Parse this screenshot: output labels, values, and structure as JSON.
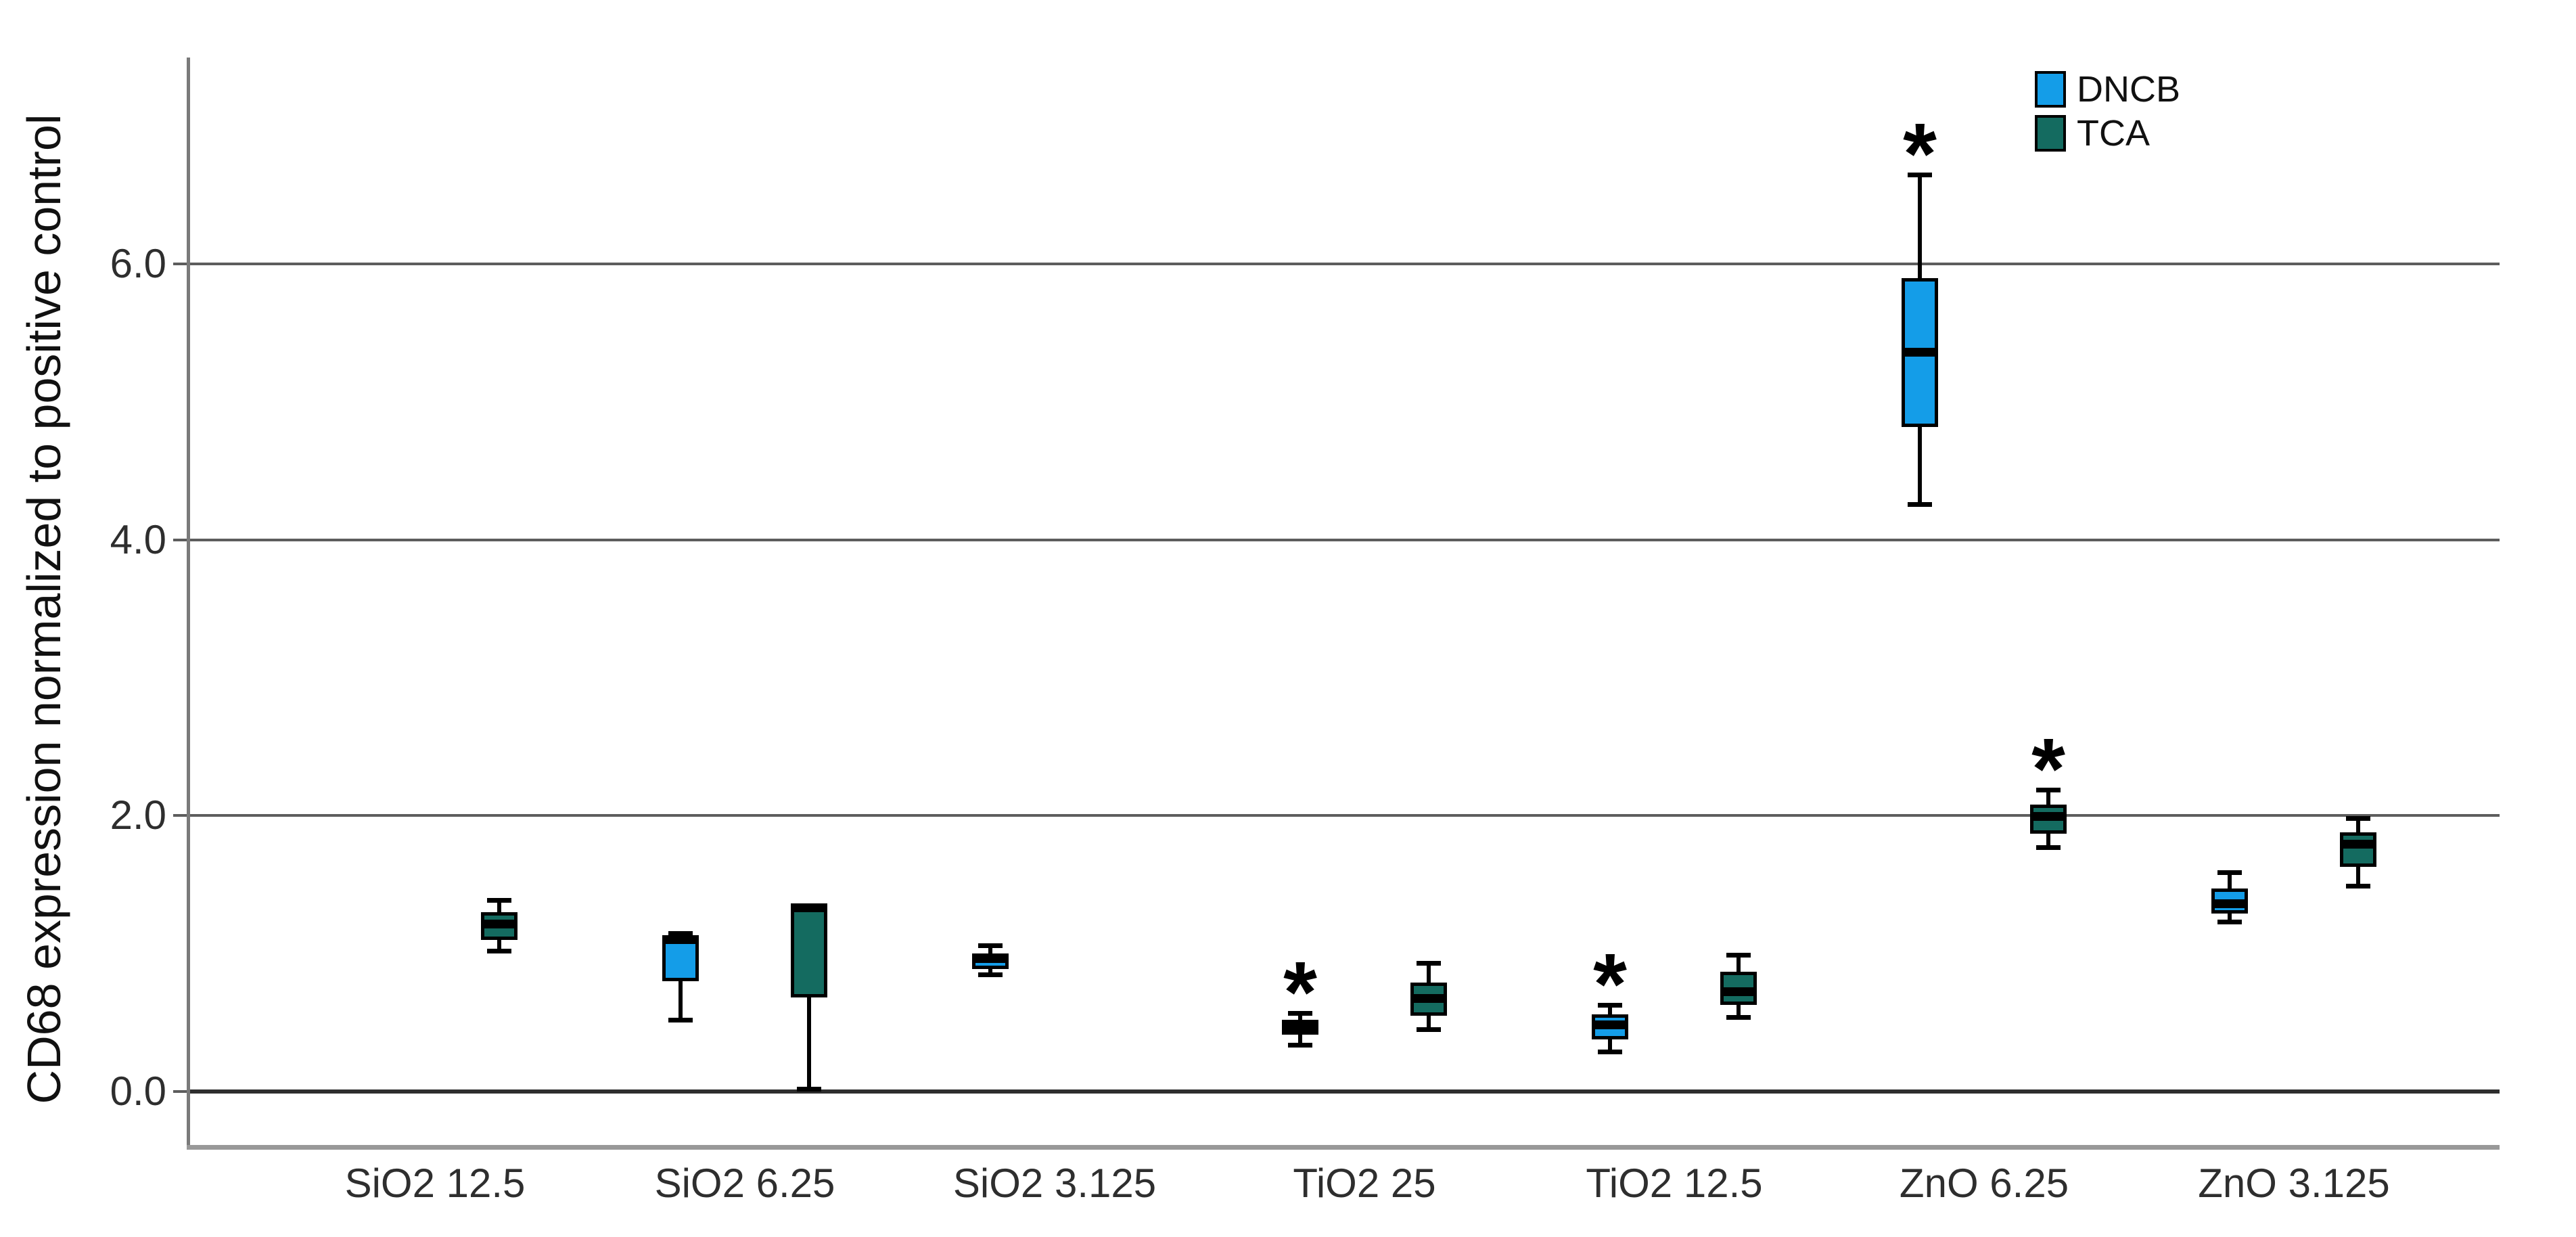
{
  "figure": {
    "y_axis_title": "CD68 expression normalized to positive control",
    "background": "#ffffff"
  },
  "chart_data": {
    "type": "boxplot",
    "title": "",
    "xlabel": "",
    "ylabel": "CD68 expression normalized to positive control",
    "ylim": [
      -0.4,
      7.5
    ],
    "y_ticks": [
      0,
      2,
      4,
      6
    ],
    "y_tick_labels": [
      "0.0",
      "2.0",
      "4.0",
      "6.0"
    ],
    "grid": "horizontal",
    "legend_position": "top-right",
    "significance_marker": "*",
    "categories": [
      "SiO2 12.5",
      "SiO2 6.25",
      "SiO2 3.125",
      "TiO2 25",
      "TiO2 12.5",
      "ZnO 6.25",
      "ZnO 3.125"
    ],
    "series": [
      {
        "name": "DNCB",
        "color": "#149DE8",
        "boxes": [
          null,
          {
            "min": 0.52,
            "q1": 0.8,
            "median": 1.1,
            "q3": 1.12,
            "max": 1.15,
            "significant": false
          },
          {
            "min": 0.85,
            "q1": 0.89,
            "median": 0.96,
            "q3": 1.0,
            "max": 1.06,
            "significant": false
          },
          {
            "min": 0.34,
            "q1": 0.41,
            "median": 0.46,
            "q3": 0.52,
            "max": 0.57,
            "significant": true
          },
          {
            "min": 0.29,
            "q1": 0.38,
            "median": 0.48,
            "q3": 0.56,
            "max": 0.63,
            "significant": true
          },
          {
            "min": 4.26,
            "q1": 4.82,
            "median": 5.36,
            "q3": 5.9,
            "max": 6.65,
            "significant": true
          },
          {
            "min": 1.23,
            "q1": 1.29,
            "median": 1.36,
            "q3": 1.47,
            "max": 1.59,
            "significant": false
          }
        ]
      },
      {
        "name": "TCA",
        "color": "#146B60",
        "boxes": [
          {
            "min": 1.02,
            "q1": 1.1,
            "median": 1.21,
            "q3": 1.3,
            "max": 1.39,
            "significant": false
          },
          {
            "min": 0.02,
            "q1": 0.68,
            "median": 1.33,
            "q3": 1.35,
            "max": 1.35,
            "significant": false
          },
          null,
          {
            "min": 0.45,
            "q1": 0.55,
            "median": 0.67,
            "q3": 0.79,
            "max": 0.93,
            "significant": false
          },
          {
            "min": 0.54,
            "q1": 0.63,
            "median": 0.72,
            "q3": 0.87,
            "max": 0.99,
            "significant": false
          },
          {
            "min": 1.77,
            "q1": 1.87,
            "median": 1.99,
            "q3": 2.08,
            "max": 2.19,
            "significant": true
          },
          {
            "min": 1.49,
            "q1": 1.63,
            "median": 1.79,
            "q3": 1.88,
            "max": 1.98,
            "significant": false
          }
        ]
      }
    ],
    "colors": {
      "dncb_fill": "#149DE8",
      "tca_fill": "#146B60",
      "box_outline": "#000000",
      "gridline": "#5d5d5d",
      "zero_line": "#2e2e2e",
      "frame": "#999999",
      "axis": "#7a7a7a",
      "text": "#2e2e2e"
    }
  }
}
